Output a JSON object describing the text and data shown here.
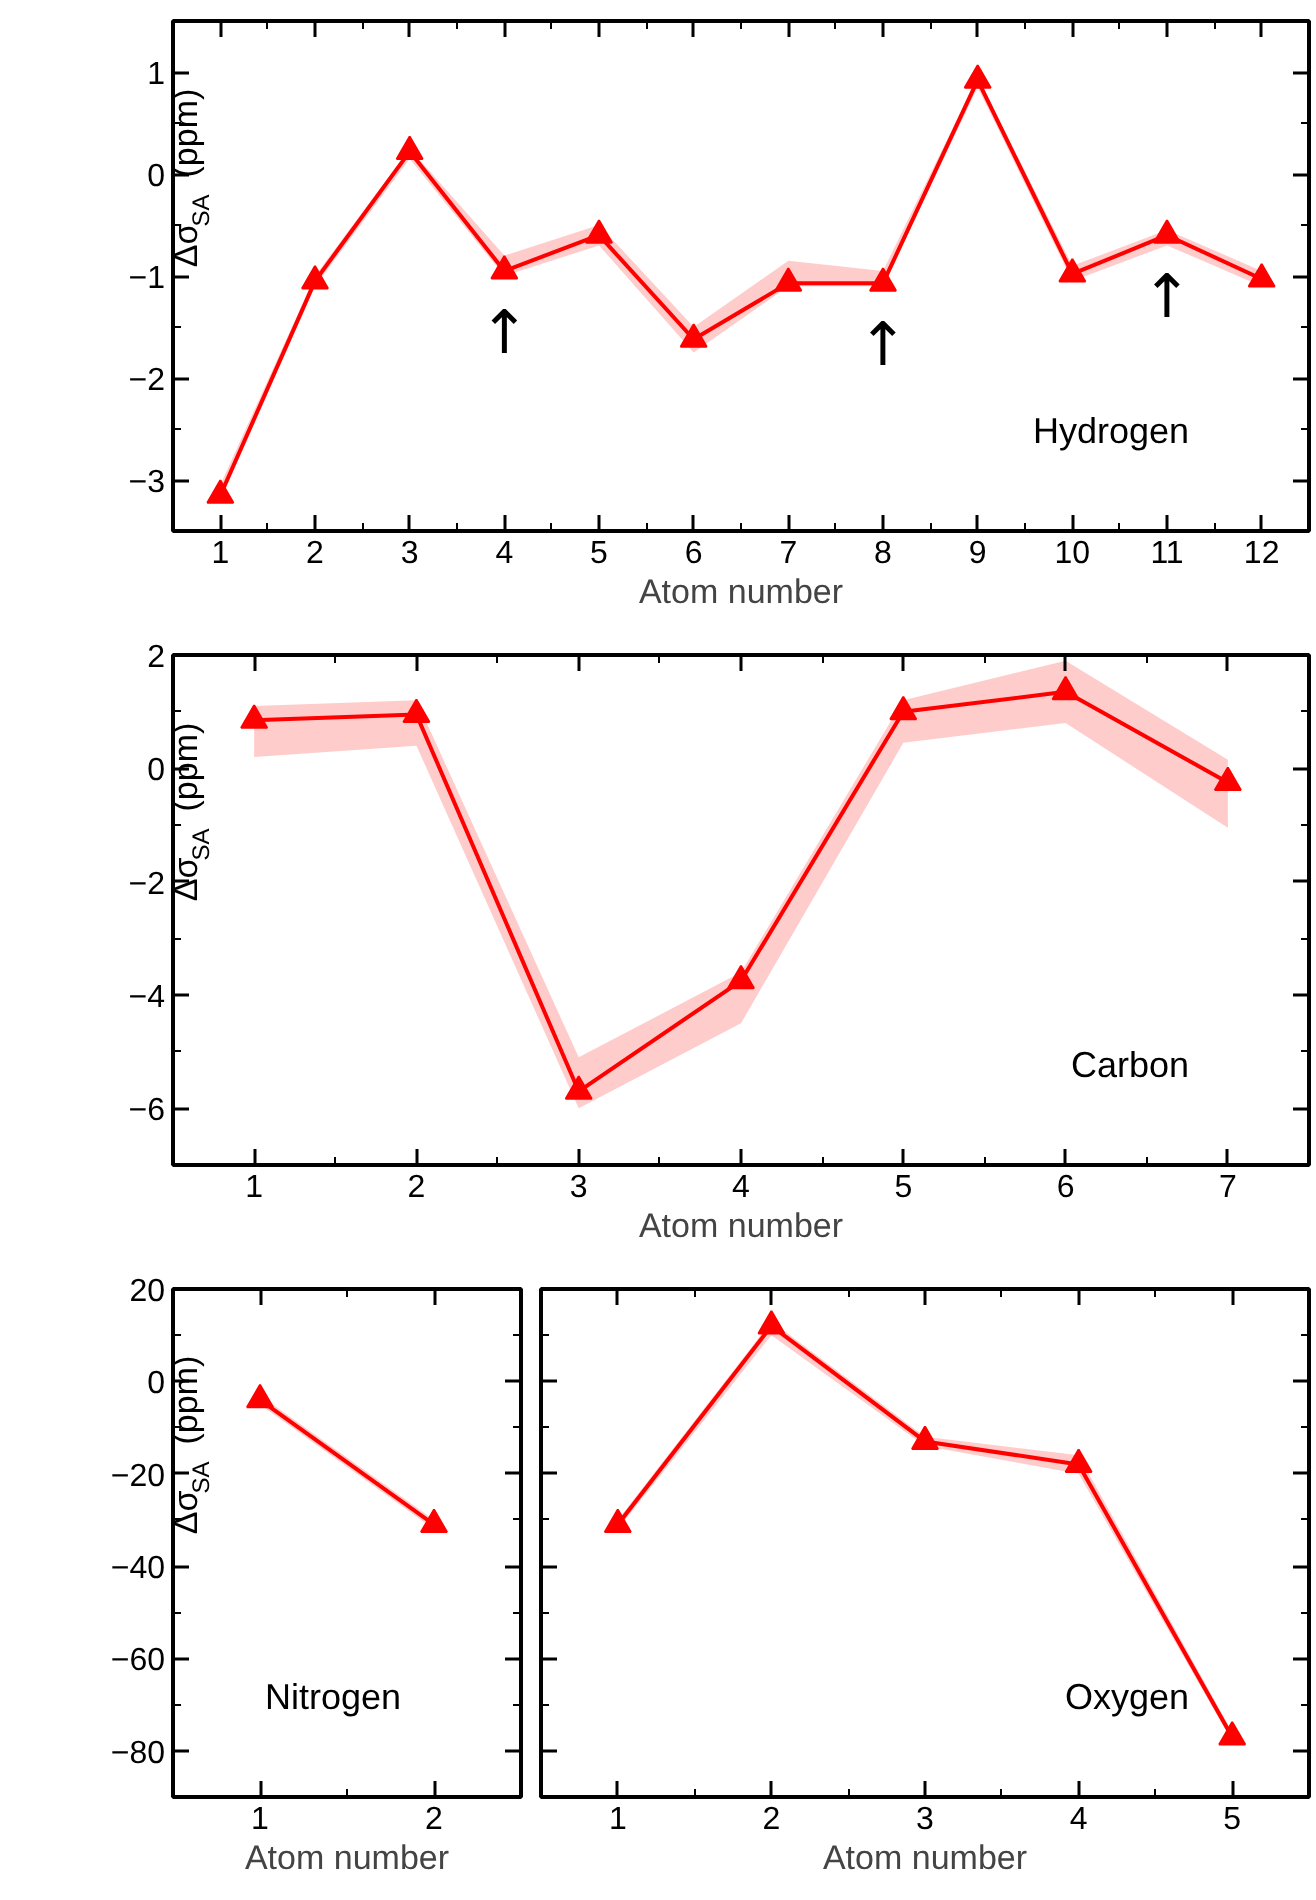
{
  "chart_data": [
    {
      "type": "line",
      "xlabel": "Atom number",
      "ylabel": "Δσ$_{SA}$ (ppm)",
      "x": [
        1,
        2,
        3,
        4,
        5,
        6,
        7,
        8,
        9,
        10,
        11,
        12
      ],
      "xlim": [
        0.5,
        12.5
      ],
      "xticks": [
        1,
        2,
        3,
        4,
        5,
        6,
        7,
        8,
        9,
        10,
        11,
        12
      ],
      "ylim": [
        -3.5,
        1.5
      ],
      "yticks": [
        -3,
        -2,
        -1,
        0,
        1
      ],
      "marker": "triangle",
      "line_style": "solid",
      "grid": false,
      "series": [
        {
          "color": "#ff0000",
          "values": [
            -3.15,
            -1.05,
            0.22,
            -0.95,
            -0.6,
            -1.62,
            -1.07,
            -1.07,
            0.92,
            -0.98,
            -0.6,
            -1.03
          ],
          "lower": [
            -3.2,
            -1.1,
            0.15,
            -1.0,
            -0.7,
            -1.75,
            -1.1,
            -1.1,
            0.85,
            -1.05,
            -0.7,
            -1.1
          ],
          "upper": [
            -3.05,
            -1.0,
            0.25,
            -0.8,
            -0.5,
            -1.5,
            -0.85,
            -0.95,
            0.95,
            -0.9,
            -0.55,
            -0.95
          ]
        }
      ],
      "annotations": [
        "Hydrogen",
        {
          "text": "↑",
          "x": 4,
          "y": -0.95
        },
        {
          "text": "↑",
          "x": 8,
          "y": -1.07
        },
        {
          "text": "↑",
          "x": 11,
          "y": -0.6
        }
      ]
    },
    {
      "type": "line",
      "xlabel": "Atom number",
      "ylabel": "Δσ$_{SA}$ (ppm)",
      "x": [
        1,
        2,
        3,
        4,
        5,
        6,
        7
      ],
      "xlim": [
        0.5,
        7.5
      ],
      "xticks": [
        1,
        2,
        3,
        4,
        5,
        6,
        7
      ],
      "ylim": [
        -7,
        2
      ],
      "yticks": [
        -6,
        -4,
        -2,
        0,
        2
      ],
      "marker": "triangle",
      "line_style": "solid",
      "grid": false,
      "series": [
        {
          "color": "#ff0000",
          "values": [
            0.85,
            0.95,
            -5.7,
            -3.75,
            1.0,
            1.35,
            -0.25
          ],
          "lower": [
            0.2,
            0.4,
            -6.0,
            -4.5,
            0.45,
            0.8,
            -1.05
          ],
          "upper": [
            1.1,
            1.2,
            -5.1,
            -3.6,
            1.2,
            1.9,
            0.15
          ]
        }
      ],
      "annotations": [
        "Carbon"
      ]
    },
    {
      "type": "line",
      "xlabel": "Atom number",
      "ylabel": "Δσ$_{SA}$ (ppm)",
      "x": [
        1,
        2
      ],
      "xlim": [
        0.5,
        2.5
      ],
      "xticks": [
        1,
        2
      ],
      "ylim": [
        -90,
        20
      ],
      "yticks": [
        -80,
        -60,
        -40,
        -20,
        0,
        20
      ],
      "marker": "triangle",
      "line_style": "solid",
      "grid": false,
      "series": [
        {
          "color": "#ff0000",
          "values": [
            -4,
            -31
          ],
          "lower": [
            -5,
            -32
          ],
          "upper": [
            -3,
            -30
          ]
        }
      ],
      "annotations": [
        "Nitrogen"
      ]
    },
    {
      "type": "line",
      "xlabel": "Atom number",
      "x": [
        1,
        2,
        3,
        4,
        5
      ],
      "xlim": [
        0.5,
        5.5
      ],
      "xticks": [
        1,
        2,
        3,
        4,
        5
      ],
      "ylim": [
        -90,
        20
      ],
      "yticks": [
        -80,
        -60,
        -40,
        -20,
        0,
        20
      ],
      "tick_labels": "x",
      "marker": "triangle",
      "line_style": "solid",
      "grid": false,
      "series": [
        {
          "color": "#ff0000",
          "values": [
            -31,
            12,
            -13,
            -18,
            -77
          ],
          "lower": [
            -32,
            10,
            -14,
            -20,
            -78
          ],
          "upper": [
            -30,
            13,
            -12,
            -16,
            -76
          ]
        }
      ],
      "annotations": [
        "Oxygen"
      ]
    }
  ]
}
